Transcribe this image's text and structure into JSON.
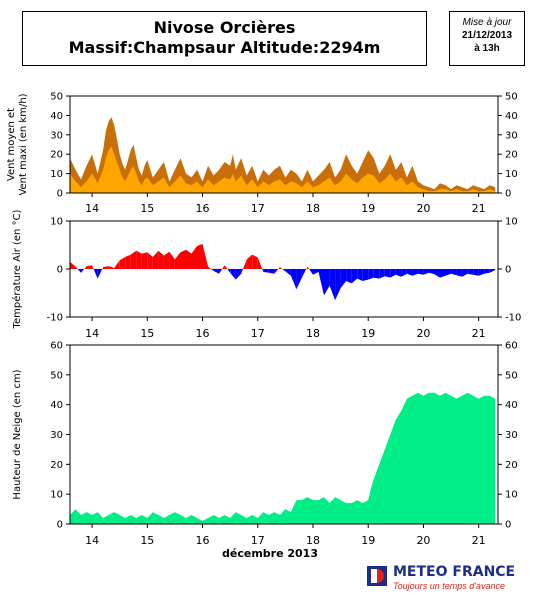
{
  "header": {
    "title_line1": "Nivose Orcières",
    "title_line2": "Massif:Champsaur Altitude:2294m",
    "update_label": "Mise à jour",
    "update_date": "21/12/2013",
    "update_time": "à 13h"
  },
  "logo": {
    "name": "METEO FRANCE",
    "tagline": "Toujours un temps d'avance",
    "colors": {
      "blue": "#1b2f8a",
      "red": "#e32219"
    }
  },
  "chart_data": [
    {
      "type": "area",
      "ylabel": "Vent moyen et\nVent maxi (en km/h)",
      "ylim": [
        0,
        50
      ],
      "yticks": [
        0,
        10,
        20,
        30,
        40,
        50
      ],
      "xlim": [
        13.6,
        21.35
      ],
      "xticks": [
        14,
        15,
        16,
        17,
        18,
        19,
        20,
        21
      ],
      "xtick_labels": [
        "14",
        "15",
        "16",
        "17",
        "18",
        "19",
        "20",
        "21"
      ],
      "colors": {
        "max": "#c86f0a",
        "mean": "#ffa500"
      },
      "x": [
        13.6,
        13.7,
        13.8,
        13.9,
        14.0,
        14.1,
        14.2,
        14.25,
        14.3,
        14.35,
        14.4,
        14.45,
        14.5,
        14.55,
        14.6,
        14.65,
        14.7,
        14.75,
        14.8,
        14.85,
        14.9,
        14.95,
        15.0,
        15.1,
        15.2,
        15.3,
        15.4,
        15.5,
        15.6,
        15.7,
        15.8,
        15.9,
        16.0,
        16.1,
        16.2,
        16.3,
        16.4,
        16.5,
        16.55,
        16.6,
        16.7,
        16.8,
        16.9,
        17.0,
        17.1,
        17.2,
        17.3,
        17.4,
        17.5,
        17.6,
        17.7,
        17.8,
        17.9,
        18.0,
        18.1,
        18.2,
        18.3,
        18.4,
        18.5,
        18.6,
        18.7,
        18.8,
        18.9,
        19.0,
        19.1,
        19.2,
        19.3,
        19.4,
        19.5,
        19.6,
        19.7,
        19.8,
        19.9,
        20.0,
        20.1,
        20.2,
        20.3,
        20.4,
        20.5,
        20.6,
        20.7,
        20.8,
        20.9,
        21.0,
        21.1,
        21.2,
        21.3
      ],
      "series": [
        {
          "name": "max",
          "values": [
            18,
            12,
            7,
            14,
            20,
            10,
            22,
            32,
            37,
            39,
            35,
            28,
            20,
            15,
            12,
            17,
            22,
            25,
            18,
            12,
            9,
            14,
            17,
            8,
            12,
            16,
            6,
            12,
            18,
            10,
            8,
            12,
            6,
            14,
            9,
            12,
            16,
            14,
            20,
            12,
            18,
            9,
            14,
            6,
            12,
            9,
            12,
            14,
            8,
            12,
            10,
            6,
            12,
            6,
            9,
            12,
            16,
            8,
            12,
            20,
            14,
            10,
            16,
            22,
            18,
            10,
            14,
            20,
            12,
            16,
            8,
            14,
            6,
            4,
            3,
            2,
            5,
            4,
            2,
            4,
            3,
            2,
            4,
            3,
            2,
            4,
            3
          ]
        },
        {
          "name": "mean",
          "values": [
            10,
            6,
            3,
            6,
            10,
            5,
            12,
            18,
            22,
            24,
            20,
            16,
            12,
            8,
            6,
            9,
            12,
            14,
            10,
            6,
            4,
            7,
            8,
            4,
            6,
            8,
            3,
            6,
            9,
            5,
            4,
            6,
            3,
            7,
            4,
            6,
            8,
            7,
            10,
            6,
            9,
            4,
            7,
            3,
            6,
            4,
            6,
            7,
            4,
            6,
            5,
            3,
            6,
            3,
            4,
            6,
            8,
            4,
            6,
            10,
            7,
            5,
            8,
            10,
            9,
            5,
            7,
            10,
            6,
            8,
            4,
            6,
            3,
            2,
            1,
            1,
            2,
            2,
            1,
            2,
            1,
            1,
            2,
            1,
            1,
            2,
            1
          ]
        }
      ]
    },
    {
      "type": "area",
      "ylabel": "Température Air (en °C)",
      "ylim": [
        -10,
        10
      ],
      "yticks": [
        -10,
        0,
        10
      ],
      "xlim": [
        13.6,
        21.35
      ],
      "xticks": [
        14,
        15,
        16,
        17,
        18,
        19,
        20,
        21
      ],
      "xtick_labels": [
        "14",
        "15",
        "16",
        "17",
        "18",
        "19",
        "20",
        "21"
      ],
      "colors": {
        "positive": "#ff0000",
        "negative": "#0000ff"
      },
      "x": [
        13.6,
        13.7,
        13.8,
        13.9,
        14.0,
        14.1,
        14.2,
        14.3,
        14.4,
        14.5,
        14.6,
        14.7,
        14.8,
        14.9,
        15.0,
        15.1,
        15.2,
        15.3,
        15.4,
        15.5,
        15.6,
        15.7,
        15.8,
        15.9,
        16.0,
        16.1,
        16.2,
        16.3,
        16.4,
        16.5,
        16.6,
        16.7,
        16.8,
        16.9,
        17.0,
        17.1,
        17.2,
        17.3,
        17.4,
        17.5,
        17.6,
        17.7,
        17.8,
        17.9,
        18.0,
        18.1,
        18.2,
        18.3,
        18.4,
        18.5,
        18.6,
        18.7,
        18.8,
        18.9,
        19.0,
        19.1,
        19.2,
        19.3,
        19.4,
        19.5,
        19.6,
        19.7,
        19.8,
        19.9,
        20.0,
        20.1,
        20.2,
        20.3,
        20.4,
        20.5,
        20.6,
        20.7,
        20.8,
        20.9,
        21.0,
        21.1,
        21.2,
        21.3
      ],
      "series": [
        {
          "name": "temperature",
          "values": [
            1.5,
            0.5,
            -0.8,
            0.6,
            0.8,
            -2.0,
            0.4,
            0.6,
            0.2,
            1.8,
            2.5,
            3.0,
            3.8,
            3.2,
            3.5,
            2.5,
            3.8,
            2.8,
            3.6,
            2.0,
            3.5,
            4.0,
            3.2,
            4.8,
            5.2,
            0.5,
            -0.4,
            -1.0,
            0.8,
            -0.8,
            -2.2,
            -1.0,
            2.0,
            3.0,
            2.4,
            -0.6,
            -0.8,
            -1.0,
            0.4,
            -0.5,
            -1.4,
            -4.2,
            -1.8,
            0.5,
            -1.2,
            -0.6,
            -5.5,
            -3.5,
            -6.5,
            -4.0,
            -2.5,
            -3.0,
            -2.0,
            -2.5,
            -2.2,
            -1.8,
            -2.0,
            -1.5,
            -1.8,
            -1.2,
            -1.6,
            -1.0,
            -1.4,
            -1.0,
            -1.2,
            -0.8,
            -1.1,
            -1.8,
            -1.4,
            -1.0,
            -1.3,
            -1.6,
            -1.0,
            -1.2,
            -1.4,
            -1.0,
            -0.8,
            -0.2
          ]
        }
      ]
    },
    {
      "type": "area",
      "ylabel": "Hauteur de Neige (en cm)",
      "xlabel": "décembre 2013",
      "ylim": [
        0,
        60
      ],
      "yticks": [
        0,
        10,
        20,
        30,
        40,
        50,
        60
      ],
      "xlim": [
        13.6,
        21.35
      ],
      "xticks": [
        14,
        15,
        16,
        17,
        18,
        19,
        20,
        21
      ],
      "xtick_labels": [
        "14",
        "15",
        "16",
        "17",
        "18",
        "19",
        "20",
        "21"
      ],
      "colors": {
        "snow": "#00ee88"
      },
      "x": [
        13.6,
        13.7,
        13.8,
        13.9,
        14.0,
        14.1,
        14.2,
        14.3,
        14.4,
        14.5,
        14.6,
        14.7,
        14.8,
        14.9,
        15.0,
        15.1,
        15.2,
        15.3,
        15.4,
        15.5,
        15.6,
        15.7,
        15.8,
        15.9,
        16.0,
        16.1,
        16.2,
        16.3,
        16.4,
        16.5,
        16.6,
        16.7,
        16.8,
        16.9,
        17.0,
        17.1,
        17.2,
        17.3,
        17.4,
        17.5,
        17.6,
        17.7,
        17.8,
        17.9,
        18.0,
        18.1,
        18.2,
        18.3,
        18.4,
        18.5,
        18.6,
        18.7,
        18.8,
        18.9,
        19.0,
        19.05,
        19.1,
        19.2,
        19.3,
        19.4,
        19.5,
        19.6,
        19.7,
        19.8,
        19.9,
        20.0,
        20.1,
        20.2,
        20.3,
        20.4,
        20.5,
        20.6,
        20.7,
        20.8,
        20.9,
        21.0,
        21.1,
        21.2,
        21.3
      ],
      "series": [
        {
          "name": "snow_depth",
          "values": [
            3,
            5,
            3,
            4,
            3,
            4,
            2,
            3,
            4,
            3,
            2,
            3,
            2,
            3,
            2,
            4,
            3,
            2,
            3,
            4,
            3,
            2,
            3,
            2,
            1,
            2,
            3,
            2,
            3,
            2,
            4,
            3,
            2,
            3,
            2,
            4,
            3,
            4,
            3,
            5,
            4,
            8,
            8,
            9,
            8,
            8,
            9,
            7,
            9,
            8,
            7,
            7,
            8,
            7,
            8,
            12,
            15,
            20,
            25,
            30,
            35,
            38,
            42,
            43,
            44,
            43,
            44,
            44,
            43,
            44,
            43,
            42,
            43,
            44,
            43,
            42,
            43,
            43,
            42
          ]
        }
      ]
    }
  ]
}
